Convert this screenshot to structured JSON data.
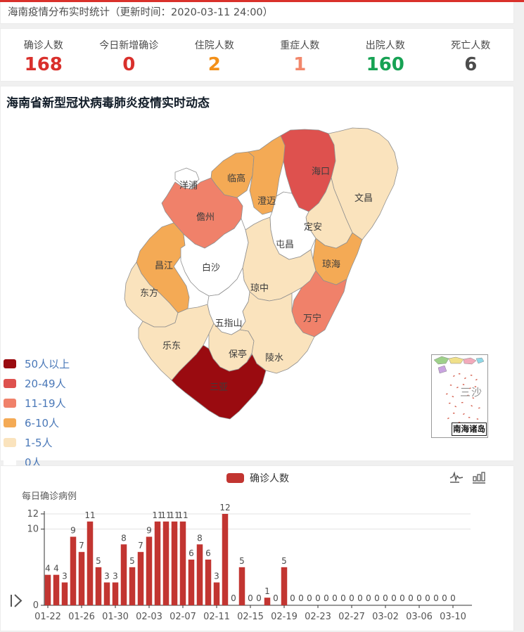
{
  "header": {
    "title": "海南疫情分布实时统计（更新时间：2020-03-11 24:00）"
  },
  "stats": [
    {
      "label": "确诊人数",
      "value": "168",
      "color": "#d9302c"
    },
    {
      "label": "今日新增确诊",
      "value": "0",
      "color": "#d9302c"
    },
    {
      "label": "住院人数",
      "value": "2",
      "color": "#f39019"
    },
    {
      "label": "重症人数",
      "value": "1",
      "color": "#f2876b"
    },
    {
      "label": "出院人数",
      "value": "160",
      "color": "#17a254"
    },
    {
      "label": "死亡人数",
      "value": "6",
      "color": "#4c4c4c"
    }
  ],
  "map_section": {
    "title": "海南省新型冠状病毒肺炎疫情实时动态",
    "legend": [
      {
        "label": "50人以上",
        "color": "#9a0b10"
      },
      {
        "label": "20-49人",
        "color": "#de514e"
      },
      {
        "label": "11-19人",
        "color": "#f0816a"
      },
      {
        "label": "6-10人",
        "color": "#f4aa55"
      },
      {
        "label": "1-5人",
        "color": "#fae3bd"
      },
      {
        "label": "0人",
        "color": "#ffffff"
      }
    ],
    "regions": [
      {
        "id": "haikou",
        "name": "海口",
        "level": "20-49人"
      },
      {
        "id": "sanya",
        "name": "三亚",
        "level": "50人以上"
      },
      {
        "id": "danzhou",
        "name": "儋州",
        "level": "11-19人"
      },
      {
        "id": "wanning",
        "name": "万宁",
        "level": "11-19人"
      },
      {
        "id": "lingao",
        "name": "临高",
        "level": "6-10人"
      },
      {
        "id": "chengmai",
        "name": "澄迈",
        "level": "6-10人"
      },
      {
        "id": "changjiang",
        "name": "昌江",
        "level": "6-10人"
      },
      {
        "id": "qionghai",
        "name": "琼海",
        "level": "6-10人"
      },
      {
        "id": "wenchang",
        "name": "文昌",
        "level": "1-5人"
      },
      {
        "id": "dingan",
        "name": "定安",
        "level": "1-5人"
      },
      {
        "id": "dongfang",
        "name": "东方",
        "level": "1-5人"
      },
      {
        "id": "qiongzhong",
        "name": "琼中",
        "level": "1-5人"
      },
      {
        "id": "ledong",
        "name": "乐东",
        "level": "1-5人"
      },
      {
        "id": "baoting",
        "name": "保亭",
        "level": "1-5人"
      },
      {
        "id": "lingshui",
        "name": "陵水",
        "level": "1-5人"
      },
      {
        "id": "yangpu",
        "name": "洋浦",
        "level": "0人"
      },
      {
        "id": "tunchang",
        "name": "屯昌",
        "level": "0人"
      },
      {
        "id": "baisha",
        "name": "白沙",
        "level": "0人"
      },
      {
        "id": "wuzhishan",
        "name": "五指山",
        "level": "0人"
      }
    ],
    "inset": {
      "region_label": "三沙",
      "caption": "南海诸岛"
    }
  },
  "chart_section": {
    "legend_label": "确诊人数",
    "subtitle": "每日确诊病例",
    "toolbox_icons": [
      "line-chart-icon",
      "bar-chart-icon"
    ]
  },
  "chart_data": {
    "type": "bar",
    "title": "每日确诊病例",
    "series_name": "确诊人数",
    "bar_color": "#c23531",
    "legend_position": "top-center",
    "grid": "horizontal-lines-at-10-and-12",
    "ylim": [
      0,
      12
    ],
    "yticks": [
      0,
      10,
      12
    ],
    "x": [
      "01-22",
      "01-23",
      "01-24",
      "01-25",
      "01-26",
      "01-27",
      "01-28",
      "01-29",
      "01-30",
      "01-31",
      "02-01",
      "02-02",
      "02-03",
      "02-04",
      "02-05",
      "02-06",
      "02-07",
      "02-08",
      "02-09",
      "02-10",
      "02-11",
      "02-12",
      "02-13",
      "02-14",
      "02-15",
      "02-16",
      "02-17",
      "02-18",
      "02-19",
      "02-20",
      "02-21",
      "02-22",
      "02-23",
      "02-24",
      "02-25",
      "02-26",
      "02-27",
      "02-28",
      "02-29",
      "03-01",
      "03-02",
      "03-03",
      "03-04",
      "03-05",
      "03-06",
      "03-07",
      "03-08",
      "03-09",
      "03-10"
    ],
    "values": [
      4,
      4,
      3,
      9,
      7,
      11,
      5,
      3,
      3,
      8,
      5,
      7,
      9,
      11,
      11,
      11,
      11,
      6,
      8,
      6,
      3,
      12,
      0,
      5,
      0,
      0,
      1,
      0,
      5,
      0,
      0,
      0,
      0,
      0,
      0,
      0,
      0,
      0,
      0,
      0,
      0,
      0,
      0,
      0,
      0,
      0,
      0,
      0,
      0
    ],
    "x_tick_labels_shown": [
      "01-22",
      "01-26",
      "01-30",
      "02-03",
      "02-07",
      "02-11",
      "02-15",
      "02-19",
      "02-23",
      "02-27",
      "03-02",
      "03-06",
      "03-10"
    ]
  }
}
